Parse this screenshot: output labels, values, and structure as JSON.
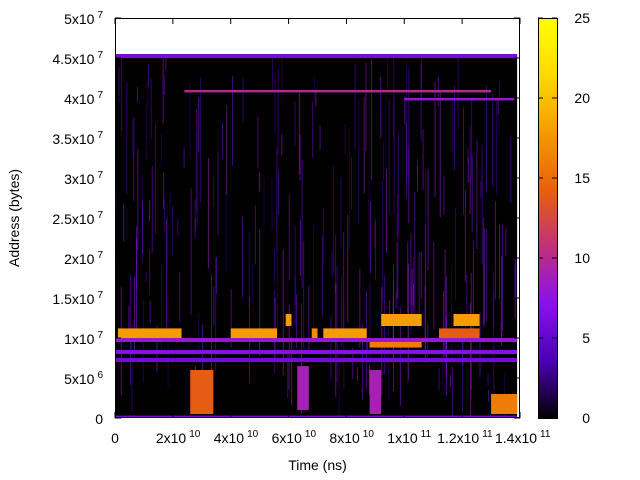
{
  "chart_data": {
    "type": "heatmap",
    "title": "",
    "xlabel": "Time (ns)",
    "ylabel": "Address (bytes)",
    "xlim": [
      0,
      140000000000
    ],
    "ylim": [
      0,
      50000000
    ],
    "x_ticks": [
      {
        "value": 0,
        "mantissa": "0",
        "exponent": ""
      },
      {
        "value": 20000000000,
        "mantissa": "2x10",
        "exponent": "10"
      },
      {
        "value": 40000000000,
        "mantissa": "4x10",
        "exponent": "10"
      },
      {
        "value": 60000000000,
        "mantissa": "6x10",
        "exponent": "10"
      },
      {
        "value": 80000000000,
        "mantissa": "8x10",
        "exponent": "10"
      },
      {
        "value": 100000000000,
        "mantissa": "1x10",
        "exponent": "11"
      },
      {
        "value": 120000000000,
        "mantissa": "1.2x10",
        "exponent": "11"
      },
      {
        "value": 140000000000,
        "mantissa": "1.4x10",
        "exponent": "11"
      }
    ],
    "y_ticks": [
      {
        "value": 0,
        "mantissa": "0",
        "exponent": ""
      },
      {
        "value": 5000000,
        "mantissa": "5x10",
        "exponent": "6"
      },
      {
        "value": 10000000,
        "mantissa": "1x10",
        "exponent": "7"
      },
      {
        "value": 15000000,
        "mantissa": "1.5x10",
        "exponent": "7"
      },
      {
        "value": 20000000,
        "mantissa": "2x10",
        "exponent": "7"
      },
      {
        "value": 25000000,
        "mantissa": "2.5x10",
        "exponent": "7"
      },
      {
        "value": 30000000,
        "mantissa": "3x10",
        "exponent": "7"
      },
      {
        "value": 35000000,
        "mantissa": "3.5x10",
        "exponent": "7"
      },
      {
        "value": 40000000,
        "mantissa": "4x10",
        "exponent": "7"
      },
      {
        "value": 45000000,
        "mantissa": "4.5x10",
        "exponent": "7"
      },
      {
        "value": 50000000,
        "mantissa": "5x10",
        "exponent": "7"
      }
    ],
    "colorbar": {
      "range": [
        0,
        25
      ],
      "ticks": [
        "0",
        "5",
        "10",
        "15",
        "20",
        "25"
      ],
      "palette": [
        "#000000",
        "#4b00b4",
        "#8a10f0",
        "#c0307a",
        "#e8600c",
        "#f59a00",
        "#fdd900",
        "#ffff00"
      ]
    },
    "data_extent": {
      "x": [
        0,
        139000000000
      ],
      "y": [
        0,
        45500000
      ]
    },
    "regions": [
      {
        "x0": 0,
        "x1": 139000000000,
        "y0": 45000000,
        "y1": 45500000,
        "value": 6
      },
      {
        "x0": 24000000000,
        "x1": 130000000000,
        "y0": 40700000,
        "y1": 41000000,
        "value": 10
      },
      {
        "x0": 100000000000,
        "x1": 138000000000,
        "y0": 39700000,
        "y1": 40000000,
        "value": 8
      },
      {
        "x0": 1000000000,
        "x1": 23000000000,
        "y0": 10000000,
        "y1": 11200000,
        "value": 18
      },
      {
        "x0": 40000000000,
        "x1": 56000000000,
        "y0": 10000000,
        "y1": 11200000,
        "value": 18
      },
      {
        "x0": 59000000000,
        "x1": 61000000000,
        "y0": 11500000,
        "y1": 13000000,
        "value": 18
      },
      {
        "x0": 68000000000,
        "x1": 70000000000,
        "y0": 10000000,
        "y1": 11200000,
        "value": 17
      },
      {
        "x0": 72000000000,
        "x1": 87000000000,
        "y0": 10000000,
        "y1": 11200000,
        "value": 18
      },
      {
        "x0": 92000000000,
        "x1": 106000000000,
        "y0": 11500000,
        "y1": 13000000,
        "value": 18
      },
      {
        "x0": 88000000000,
        "x1": 106000000000,
        "y0": 8800000,
        "y1": 9500000,
        "value": 16
      },
      {
        "x0": 117000000000,
        "x1": 126000000000,
        "y0": 11500000,
        "y1": 13000000,
        "value": 18
      },
      {
        "x0": 112000000000,
        "x1": 126000000000,
        "y0": 10000000,
        "y1": 11200000,
        "value": 14
      },
      {
        "x0": 0,
        "x1": 139000000000,
        "y0": 9500000,
        "y1": 10000000,
        "value": 8
      },
      {
        "x0": 0,
        "x1": 139000000000,
        "y0": 8000000,
        "y1": 8500000,
        "value": 7
      },
      {
        "x0": 0,
        "x1": 139000000000,
        "y0": 7000000,
        "y1": 7500000,
        "value": 6
      },
      {
        "x0": 26000000000,
        "x1": 34000000000,
        "y0": 500000,
        "y1": 6000000,
        "value": 14
      },
      {
        "x0": 63000000000,
        "x1": 67000000000,
        "y0": 1000000,
        "y1": 6500000,
        "value": 9
      },
      {
        "x0": 88000000000,
        "x1": 92000000000,
        "y0": 500000,
        "y1": 6000000,
        "value": 9
      },
      {
        "x0": 130000000000,
        "x1": 139000000000,
        "y0": 500000,
        "y1": 3000000,
        "value": 16
      },
      {
        "x0": 0,
        "x1": 139000000000,
        "y0": 0,
        "y1": 300000,
        "value": 6
      }
    ]
  }
}
